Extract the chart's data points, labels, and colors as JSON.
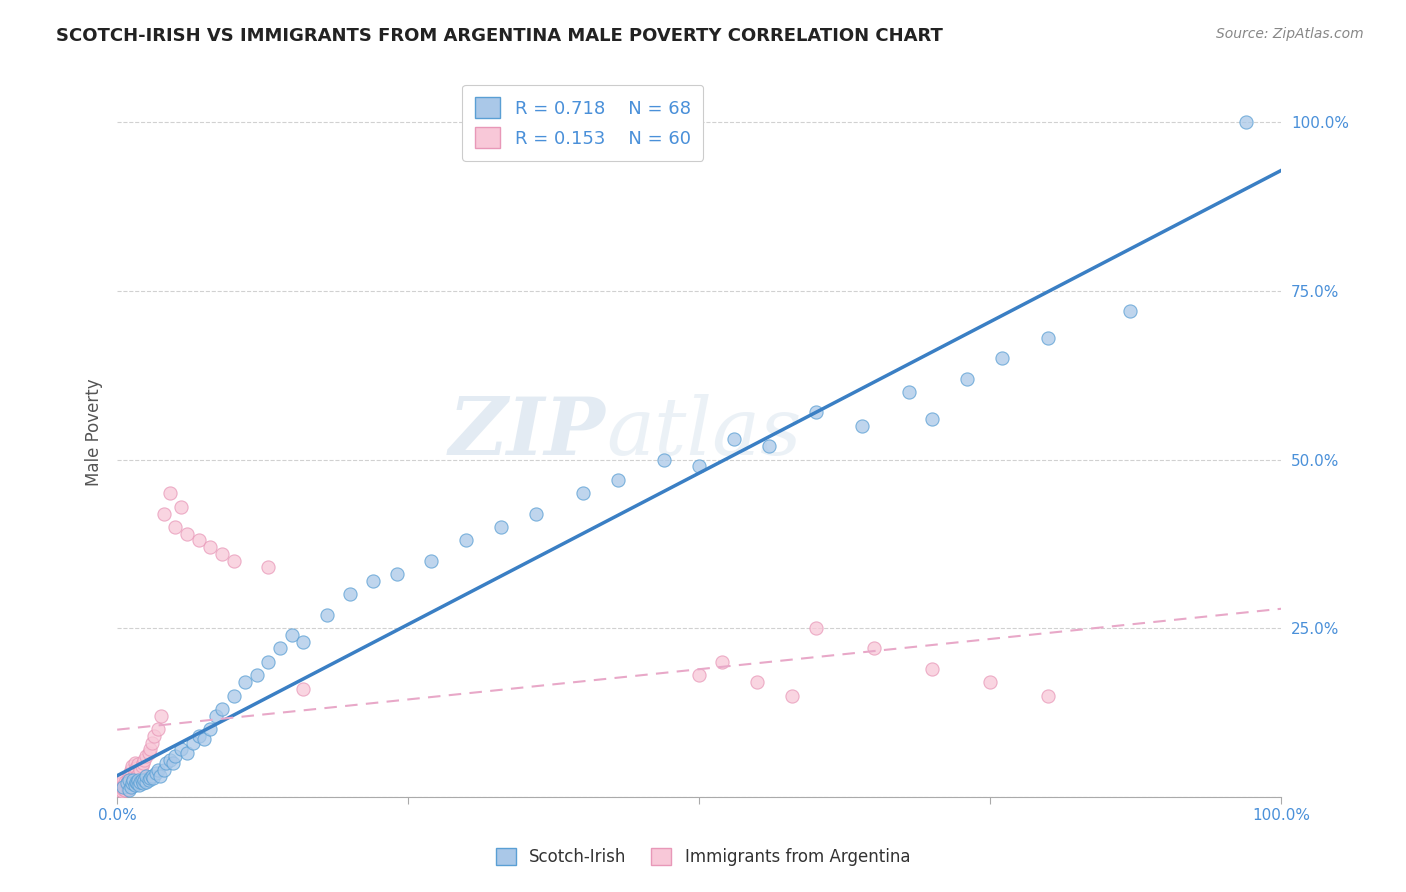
{
  "title": "SCOTCH-IRISH VS IMMIGRANTS FROM ARGENTINA MALE POVERTY CORRELATION CHART",
  "source_text": "Source: ZipAtlas.com",
  "ylabel": "Male Poverty",
  "watermark_part1": "ZIP",
  "watermark_part2": "atlas",
  "xlim": [
    0.0,
    1.0
  ],
  "ylim": [
    0.0,
    1.08
  ],
  "xticks": [
    0.0,
    0.25,
    0.5,
    0.75,
    1.0
  ],
  "yticks": [
    0.0,
    0.25,
    0.5,
    0.75,
    1.0
  ],
  "xticklabels": [
    "0.0%",
    "",
    "",
    "",
    "100.0%"
  ],
  "yticklabels_right": [
    "",
    "25.0%",
    "50.0%",
    "75.0%",
    "100.0%"
  ],
  "series1_fill_color": "#aac8e8",
  "series1_edge_color": "#5a9fd4",
  "series1_line_color": "#3a7fc4",
  "series2_fill_color": "#f8c8d8",
  "series2_edge_color": "#e898b8",
  "series2_line_color": "#e8a8c8",
  "R1": 0.718,
  "N1": 68,
  "R2": 0.153,
  "N2": 60,
  "legend_label1": "Scotch-Irish",
  "legend_label2": "Immigrants from Argentina",
  "title_color": "#222222",
  "axis_color": "#555555",
  "grid_color": "#cccccc",
  "tick_label_color": "#4a90d9",
  "source_color": "#888888",
  "background_color": "#ffffff",
  "scotch_irish_x": [
    0.005,
    0.008,
    0.01,
    0.01,
    0.012,
    0.013,
    0.014,
    0.015,
    0.016,
    0.017,
    0.018,
    0.019,
    0.02,
    0.021,
    0.022,
    0.023,
    0.025,
    0.025,
    0.027,
    0.028,
    0.03,
    0.031,
    0.033,
    0.035,
    0.037,
    0.04,
    0.042,
    0.045,
    0.048,
    0.05,
    0.055,
    0.06,
    0.065,
    0.07,
    0.075,
    0.08,
    0.085,
    0.09,
    0.1,
    0.11,
    0.12,
    0.13,
    0.14,
    0.15,
    0.16,
    0.18,
    0.2,
    0.22,
    0.24,
    0.27,
    0.3,
    0.33,
    0.36,
    0.4,
    0.43,
    0.47,
    0.5,
    0.53,
    0.56,
    0.6,
    0.64,
    0.68,
    0.7,
    0.73,
    0.76,
    0.8,
    0.87,
    0.97
  ],
  "scotch_irish_y": [
    0.015,
    0.02,
    0.01,
    0.025,
    0.015,
    0.02,
    0.025,
    0.018,
    0.022,
    0.02,
    0.025,
    0.018,
    0.022,
    0.025,
    0.02,
    0.025,
    0.022,
    0.03,
    0.025,
    0.028,
    0.03,
    0.028,
    0.035,
    0.04,
    0.03,
    0.04,
    0.05,
    0.055,
    0.05,
    0.06,
    0.07,
    0.065,
    0.08,
    0.09,
    0.085,
    0.1,
    0.12,
    0.13,
    0.15,
    0.17,
    0.18,
    0.2,
    0.22,
    0.24,
    0.23,
    0.27,
    0.3,
    0.32,
    0.33,
    0.35,
    0.38,
    0.4,
    0.42,
    0.45,
    0.47,
    0.5,
    0.49,
    0.53,
    0.52,
    0.57,
    0.55,
    0.6,
    0.56,
    0.62,
    0.65,
    0.68,
    0.72,
    1.0
  ],
  "argentina_x": [
    0.002,
    0.003,
    0.004,
    0.004,
    0.005,
    0.005,
    0.006,
    0.006,
    0.007,
    0.007,
    0.008,
    0.008,
    0.009,
    0.009,
    0.01,
    0.01,
    0.011,
    0.011,
    0.012,
    0.012,
    0.013,
    0.013,
    0.014,
    0.015,
    0.015,
    0.016,
    0.017,
    0.018,
    0.019,
    0.02,
    0.021,
    0.022,
    0.023,
    0.025,
    0.027,
    0.028,
    0.03,
    0.032,
    0.035,
    0.038,
    0.04,
    0.045,
    0.05,
    0.055,
    0.06,
    0.07,
    0.08,
    0.09,
    0.1,
    0.13,
    0.16,
    0.5,
    0.52,
    0.55,
    0.58,
    0.6,
    0.65,
    0.7,
    0.75,
    0.8
  ],
  "argentina_y": [
    0.01,
    0.015,
    0.008,
    0.02,
    0.012,
    0.025,
    0.015,
    0.018,
    0.01,
    0.022,
    0.015,
    0.02,
    0.025,
    0.012,
    0.025,
    0.03,
    0.018,
    0.035,
    0.022,
    0.04,
    0.025,
    0.045,
    0.028,
    0.035,
    0.05,
    0.042,
    0.03,
    0.048,
    0.035,
    0.04,
    0.045,
    0.05,
    0.055,
    0.06,
    0.065,
    0.07,
    0.08,
    0.09,
    0.1,
    0.12,
    0.42,
    0.45,
    0.4,
    0.43,
    0.39,
    0.38,
    0.37,
    0.36,
    0.35,
    0.34,
    0.16,
    0.18,
    0.2,
    0.17,
    0.15,
    0.25,
    0.22,
    0.19,
    0.17,
    0.15
  ]
}
